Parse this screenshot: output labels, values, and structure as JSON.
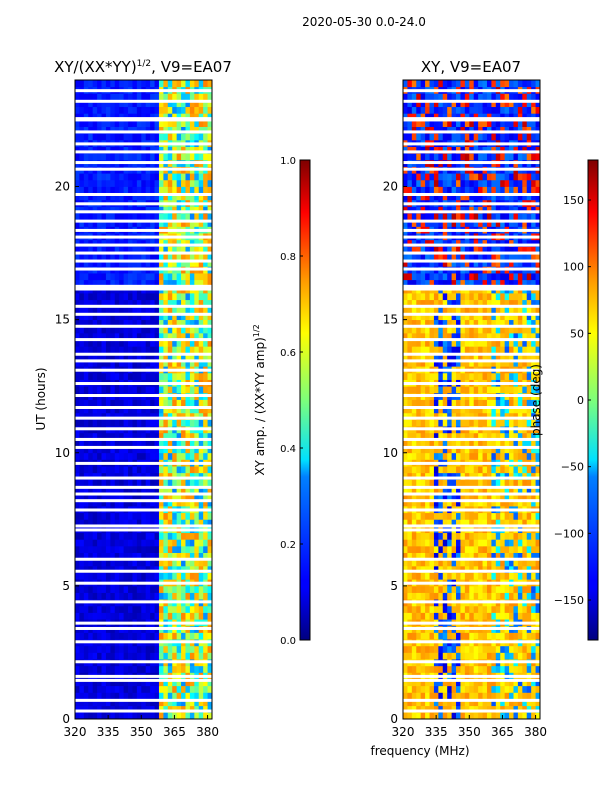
{
  "figure": {
    "suptitle": "2020-05-30 0.0-24.0",
    "shared_xlabel": "frequency (MHz)"
  },
  "chart_data": [
    {
      "type": "heatmap",
      "title": "XY/(XX*YY)",
      "title_exponent": "1/2",
      "title_suffix": ", V9=EA07",
      "xlabel": "",
      "ylabel": "UT (hours)",
      "xlim": [
        320,
        382
      ],
      "ylim": [
        0,
        24
      ],
      "xticks": [
        320,
        335,
        350,
        365,
        380
      ],
      "yticks": [
        0,
        5,
        10,
        15,
        20
      ],
      "colormap": "jet",
      "colorbar": {
        "label": "XY amp. / (XX*YY amp)",
        "label_exponent": "1/2",
        "range": [
          0.0,
          1.0
        ],
        "ticks": [
          0.0,
          0.2,
          0.4,
          0.6,
          0.8,
          1.0
        ],
        "tick_labels": [
          "0.0",
          "0.2",
          "0.4",
          "0.6",
          "0.8",
          "1.0"
        ]
      },
      "bands": [
        {
          "from": 320,
          "to": 359,
          "level": 0.08,
          "note": "low normalized amplitude (deep blue)"
        },
        {
          "from": 359,
          "to": 382,
          "level": 0.45,
          "note": "elevated, striped cyan/yellow"
        }
      ],
      "row_gap_hours": [
        0.3,
        0.7,
        1.45,
        1.6,
        2.15,
        2.9,
        3.4,
        3.6,
        4.4,
        5.1,
        5.55,
        6.0,
        7.1,
        7.25,
        7.85,
        8.2,
        8.45,
        8.7,
        9.05,
        9.6,
        10.2,
        10.5,
        10.9,
        11.3,
        11.7,
        12.15,
        12.6,
        13.1,
        13.45,
        13.7,
        14.25,
        14.75,
        15.2,
        15.5,
        16.15,
        16.25,
        16.9,
        17.2,
        17.5,
        17.8,
        18.1,
        18.35,
        18.7,
        19.05,
        19.35,
        19.7,
        20.65,
        20.9,
        21.3,
        21.6,
        22.05,
        22.5,
        22.55,
        23.2,
        23.6
      ]
    },
    {
      "type": "heatmap",
      "title": "XY, V9=EA07",
      "xlabel": "frequency (MHz)",
      "ylabel": "",
      "xlim": [
        320,
        382
      ],
      "ylim": [
        0,
        24
      ],
      "xticks": [
        320,
        335,
        350,
        365,
        380
      ],
      "yticks": [
        0,
        5,
        10,
        15,
        20
      ],
      "colormap": "jet",
      "colorbar": {
        "label": "phase (deg)",
        "range": [
          -180,
          180
        ],
        "ticks": [
          -150,
          -100,
          -50,
          0,
          50,
          100,
          150
        ],
        "tick_labels": [
          "−150",
          "−100",
          "−50",
          "0",
          "50",
          "100",
          "150"
        ]
      },
      "phase_regions": [
        {
          "t_from": 0,
          "t_to": 16,
          "description": "mostly yellow/orange (~40–80 deg) with blue striping near 335–345 MHz"
        },
        {
          "t_from": 16,
          "t_to": 24,
          "description": "mostly blue (~-150 deg) with red/yellow patches"
        }
      ],
      "row_gap_hours": [
        0.3,
        0.7,
        1.45,
        1.6,
        2.15,
        2.9,
        3.4,
        3.6,
        4.4,
        5.1,
        5.55,
        6.0,
        7.1,
        7.25,
        7.85,
        8.2,
        8.45,
        8.7,
        9.05,
        9.6,
        10.2,
        10.5,
        10.9,
        11.3,
        11.7,
        12.15,
        12.6,
        13.1,
        13.45,
        13.7,
        14.25,
        14.75,
        15.2,
        15.5,
        16.15,
        16.25,
        16.9,
        17.2,
        17.5,
        17.8,
        18.1,
        18.35,
        18.7,
        19.05,
        19.35,
        19.7,
        20.65,
        20.9,
        21.3,
        21.6,
        22.05,
        22.5,
        22.55,
        23.2,
        23.6
      ]
    }
  ]
}
